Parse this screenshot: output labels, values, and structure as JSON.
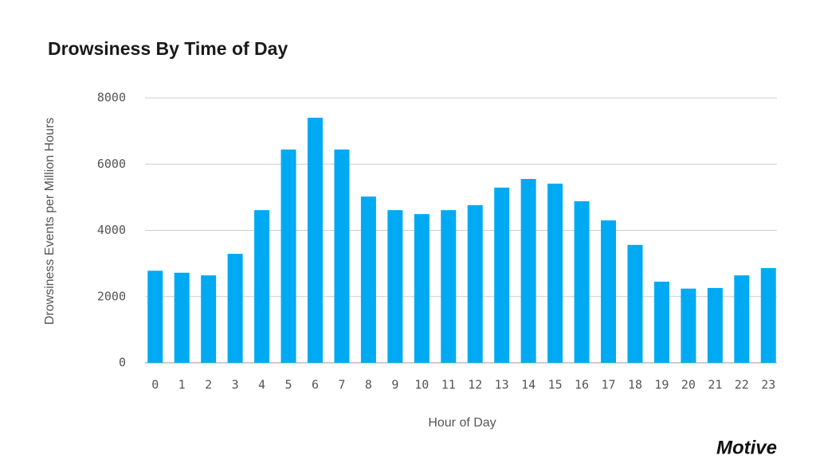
{
  "chart_data": {
    "type": "bar",
    "title": "Drowsiness By Time of Day",
    "x_label": "Hour of Day",
    "y_label": "Drowsiness Events per Million Hours",
    "logo": "Motive",
    "categories": [
      "0",
      "1",
      "2",
      "3",
      "4",
      "5",
      "6",
      "7",
      "8",
      "9",
      "10",
      "11",
      "12",
      "13",
      "14",
      "15",
      "16",
      "17",
      "18",
      "19",
      "20",
      "21",
      "22",
      "23"
    ],
    "values": [
      2780,
      2720,
      2640,
      3290,
      4610,
      6440,
      7400,
      6440,
      5020,
      4610,
      4490,
      4610,
      4760,
      5290,
      5550,
      5410,
      4880,
      4300,
      3560,
      2450,
      2240,
      2260,
      2640,
      2860
    ],
    "color": "#00aaf2",
    "ylim": [
      0,
      8000
    ],
    "yticks": [
      0,
      2000,
      4000,
      6000,
      8000
    ],
    "grid": true
  }
}
